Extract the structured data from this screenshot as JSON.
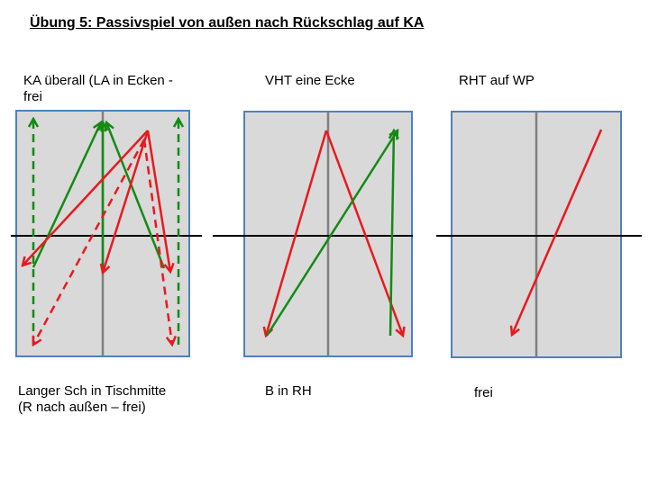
{
  "title": "Übung 5: Passivspiel von außen nach Rückschlag auf KA",
  "panels": [
    {
      "top_label": [
        "KA überall (LA in Ecken -",
        "frei"
      ],
      "bottom_label": [
        "Langer Sch in Tischmitte",
        "(R nach außen – frei)"
      ]
    },
    {
      "top_label": [
        "VHT eine Ecke"
      ],
      "bottom_label": [
        "B in RH"
      ]
    },
    {
      "top_label": [
        "RHT auf WP"
      ],
      "bottom_label": [
        "frei"
      ]
    }
  ],
  "colors": {
    "table_fill": "#d9d9d9",
    "table_border": "#4f81bd",
    "center_line": "#808080",
    "net": "#000000",
    "green": "#138a13",
    "red": "#e8191f"
  },
  "icons": [
    "table-diagram",
    "net-line",
    "arrow"
  ]
}
